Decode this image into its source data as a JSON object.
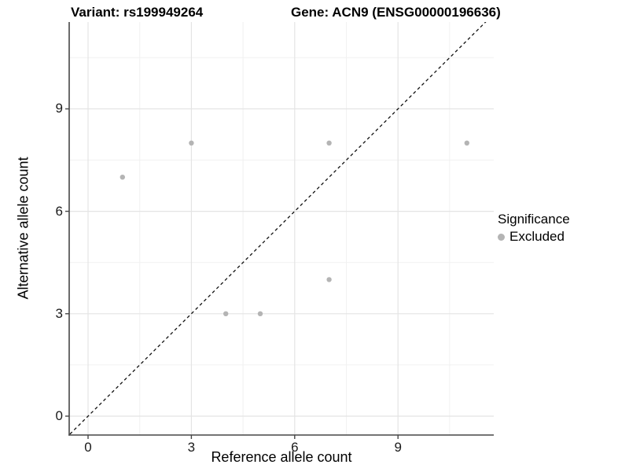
{
  "header": {
    "variant_title": "Variant: rs199949264",
    "gene_title": "Gene: ACN9 (ENSG00000196636)"
  },
  "chart_data": {
    "type": "scatter",
    "title_left": "Variant: rs199949264",
    "title_right": "Gene: ACN9 (ENSG00000196636)",
    "xlabel": "Reference allele count",
    "ylabel": "Alternative allele count",
    "xticks": [
      0,
      3,
      6,
      9
    ],
    "yticks": [
      0,
      3,
      6,
      9
    ],
    "minor_xticks": [
      1.5,
      4.5,
      7.5,
      10.5
    ],
    "minor_yticks": [
      1.5,
      4.5,
      7.5,
      10.5
    ],
    "xlim": [
      -0.55,
      11.8
    ],
    "ylim": [
      -0.57,
      11.55
    ],
    "grid": true,
    "diagonal_line": {
      "type": "identity",
      "style": "dashed",
      "color": "#111111"
    },
    "series": [
      {
        "name": "Excluded",
        "color": "#b4b4b4",
        "points": [
          {
            "x": 1,
            "y": 7
          },
          {
            "x": 3,
            "y": 8
          },
          {
            "x": 4,
            "y": 3
          },
          {
            "x": 5,
            "y": 3
          },
          {
            "x": 7,
            "y": 4
          },
          {
            "x": 7,
            "y": 8
          },
          {
            "x": 11,
            "y": 8
          }
        ]
      }
    ],
    "legend": {
      "title": "Significance",
      "position": "right",
      "items": [
        {
          "label": "Excluded",
          "color": "#b4b4b4"
        }
      ]
    },
    "colors": {
      "axis_line": "#464646",
      "major_grid": "#e4e4e4",
      "minor_grid": "#f1f1f1",
      "background": "#ffffff"
    }
  }
}
